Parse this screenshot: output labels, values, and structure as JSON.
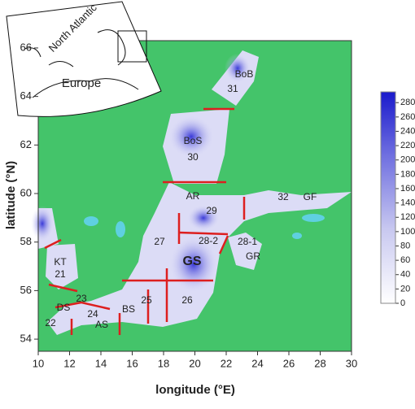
{
  "map": {
    "xlabel": "longitude (°E)",
    "ylabel": "latitude (°N)",
    "xlim": [
      10,
      30
    ],
    "ylim": [
      53.5,
      66.3
    ],
    "xticks": [
      10,
      12,
      14,
      16,
      18,
      20,
      22,
      24,
      26,
      28,
      30
    ],
    "yticks": [
      54,
      56,
      58,
      60,
      62,
      64,
      66
    ],
    "colorbar": {
      "lim": [
        0,
        295
      ],
      "ticks": [
        0,
        20,
        40,
        60,
        80,
        100,
        120,
        140,
        160,
        180,
        200,
        220,
        240,
        260,
        280
      ]
    },
    "regions": [
      "BoB",
      "31",
      "BoS",
      "30",
      "AR",
      "29",
      "32",
      "GF",
      "27",
      "28-2",
      "28-1",
      "GS",
      "GR",
      "KT",
      "21",
      "23",
      "DS",
      "24",
      "25",
      "26",
      "BS",
      "AS",
      "22"
    ],
    "inset": {
      "labels": [
        "North Atlantic",
        "Europe"
      ]
    }
  }
}
